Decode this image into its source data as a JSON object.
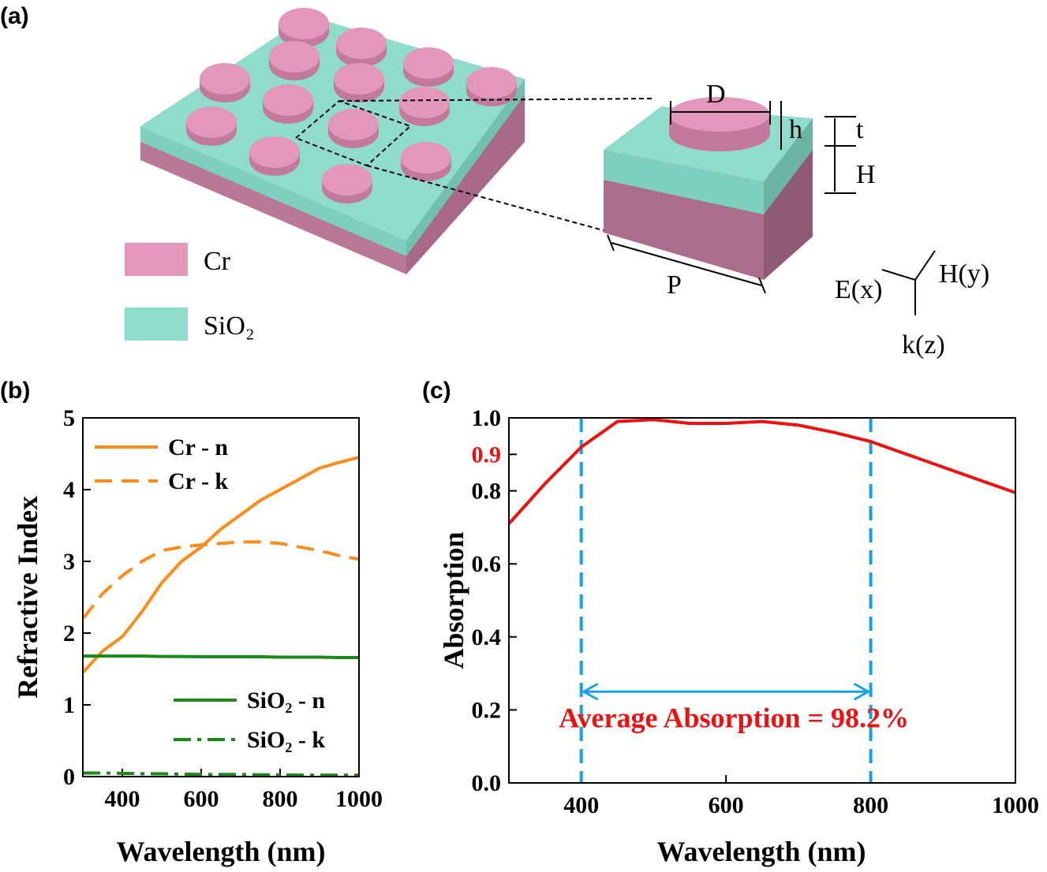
{
  "diagram": {
    "label": "(a)",
    "legend": [
      "Cr",
      "SiO₂"
    ],
    "dims": [
      "D",
      "h",
      "t",
      "H",
      "P"
    ],
    "axes": [
      "E(x)",
      "H(y)",
      "k(z)"
    ],
    "colors": {
      "Cr": "#e397bb",
      "SiO2": "#8fdccb"
    }
  },
  "chart_data": [
    {
      "type": "line",
      "label": "(b)",
      "xlabel": "Wavelength (nm)",
      "ylabel": "Refractive Index",
      "x": [
        300,
        350,
        400,
        450,
        500,
        550,
        600,
        650,
        700,
        750,
        800,
        850,
        900,
        950,
        1000
      ],
      "series": [
        {
          "name": "Cr - n",
          "color": "#ff8c1a",
          "dash": "solid",
          "values": [
            1.45,
            1.75,
            1.95,
            2.3,
            2.7,
            3.0,
            3.2,
            3.45,
            3.65,
            3.85,
            4.0,
            4.15,
            4.3,
            4.38,
            4.45
          ]
        },
        {
          "name": "Cr - k",
          "color": "#ff8c1a",
          "dash": "dash",
          "values": [
            2.2,
            2.55,
            2.8,
            3.0,
            3.15,
            3.2,
            3.23,
            3.25,
            3.27,
            3.27,
            3.25,
            3.2,
            3.15,
            3.08,
            3.03
          ]
        },
        {
          "name": "SiO₂ - n",
          "color": "#1a8a1a",
          "dash": "solid",
          "values": [
            1.68,
            1.68,
            1.68,
            1.68,
            1.675,
            1.675,
            1.67,
            1.67,
            1.67,
            1.67,
            1.665,
            1.665,
            1.665,
            1.66,
            1.66
          ]
        },
        {
          "name": "SiO₂ - k",
          "color": "#1a8a1a",
          "dash": "dashdot",
          "values": [
            0.05,
            0.05,
            0.045,
            0.04,
            0.04,
            0.035,
            0.03,
            0.03,
            0.03,
            0.025,
            0.025,
            0.02,
            0.02,
            0.02,
            0.02
          ]
        }
      ],
      "xlim": [
        300,
        1000
      ],
      "ylim": [
        0,
        5
      ],
      "xticks": [
        400,
        600,
        800,
        1000
      ],
      "yticks": [
        0,
        1,
        2,
        3,
        4,
        5
      ]
    },
    {
      "type": "line",
      "label": "(c)",
      "xlabel": "Wavelength (nm)",
      "ylabel": "Absorption",
      "x": [
        300,
        350,
        400,
        450,
        500,
        550,
        600,
        650,
        700,
        750,
        800,
        850,
        900,
        950,
        1000
      ],
      "series": [
        {
          "name": "Absorption",
          "color": "#ee1111",
          "dash": "solid",
          "values": [
            0.71,
            0.82,
            0.92,
            0.99,
            0.995,
            0.985,
            0.985,
            0.99,
            0.98,
            0.96,
            0.935,
            0.9,
            0.865,
            0.83,
            0.795
          ]
        }
      ],
      "xlim": [
        300,
        1000
      ],
      "ylim": [
        0,
        1
      ],
      "xticks": [
        400,
        600,
        800,
        1000
      ],
      "yticks": [
        {
          "value": 0,
          "label": "0.0"
        },
        0.2,
        0.4,
        0.6,
        0.8,
        {
          "value": 0.9,
          "label": "0.9",
          "color": "#ee1111"
        },
        {
          "value": 1,
          "label": "1.0"
        }
      ],
      "vlines": [
        400,
        800
      ],
      "vline_color": "#1aa0e6",
      "annotation": "Average Absorption = 98.2%",
      "annotation_color": "#ee1111"
    }
  ]
}
